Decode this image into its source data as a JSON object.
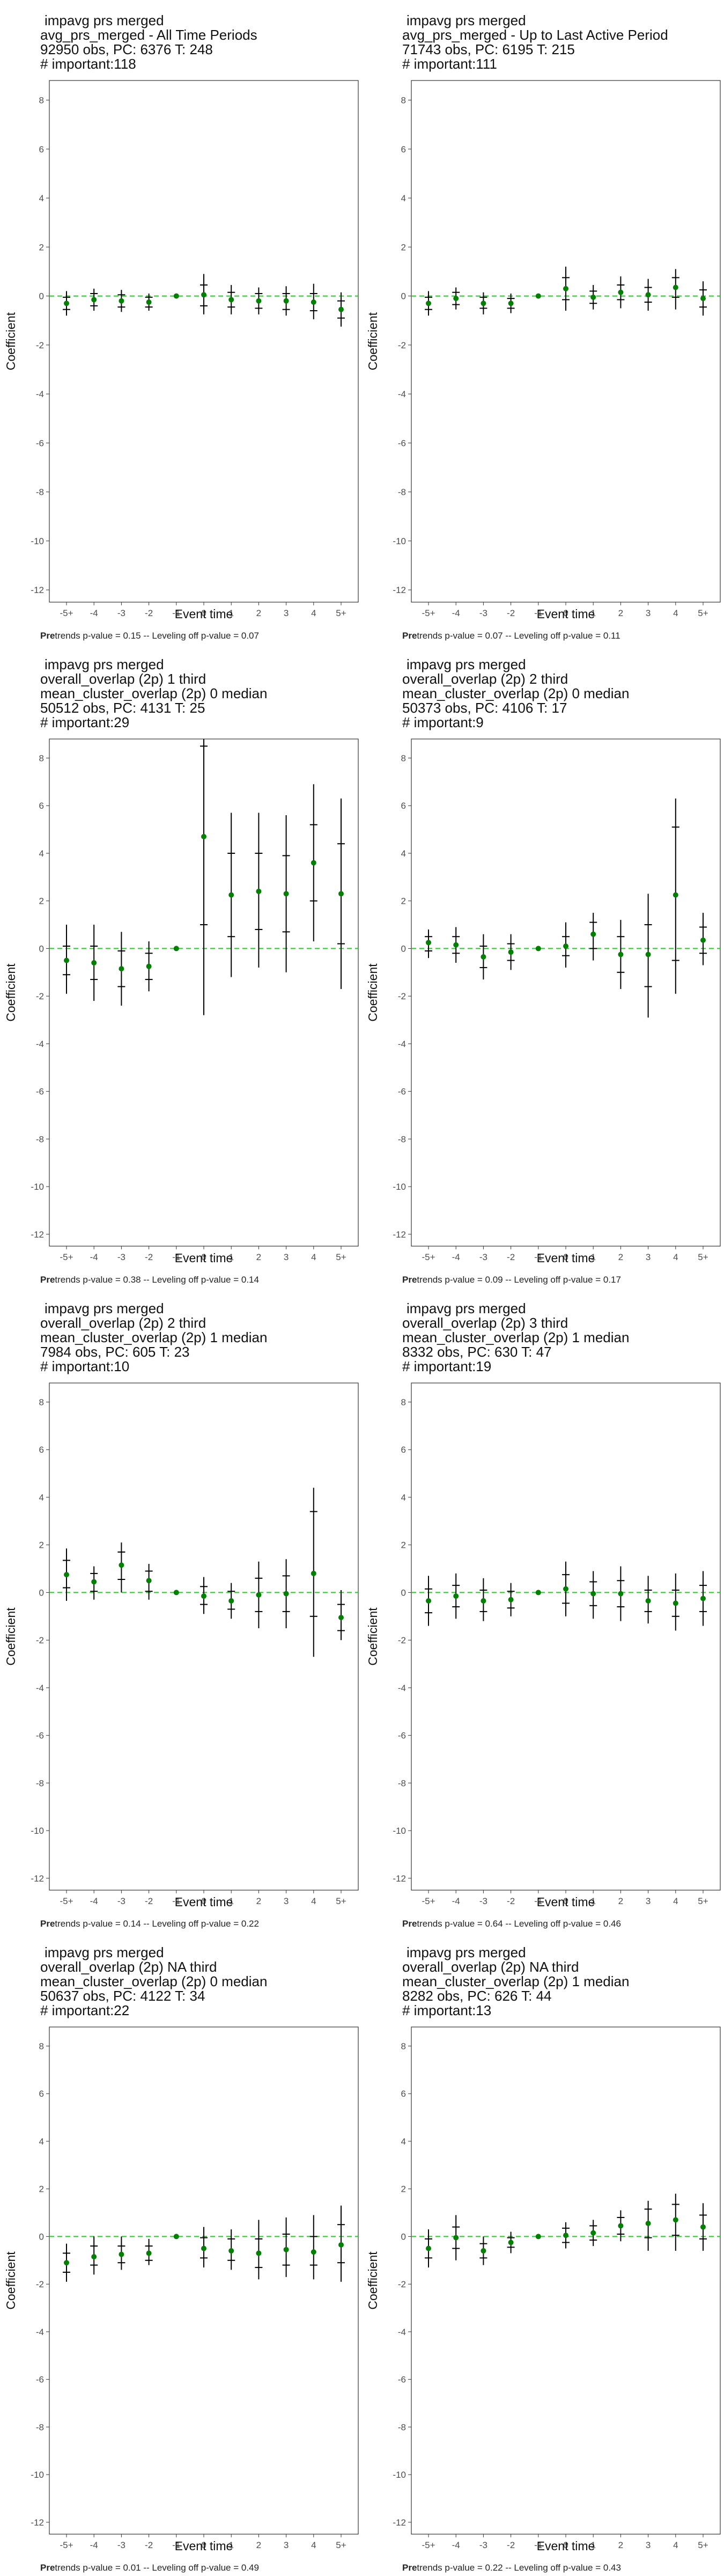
{
  "chart_data": [
    {
      "type": "scatter",
      "title_lines": [
        "impavg prs merged",
        "avg_prs_merged - All Time Periods",
        "92950 obs, PC: 6376 T: 248",
        "# important:118"
      ],
      "xlabel": "Event time",
      "ylabel": "Coefficient",
      "categories": [
        "-5+",
        "-4",
        "-3",
        "-2",
        "-1",
        "0",
        "1",
        "2",
        "3",
        "4",
        "5+"
      ],
      "ylim": [
        -12.5,
        8.8
      ],
      "yticks": [
        8,
        6,
        4,
        2,
        0,
        -2,
        -4,
        -6,
        -8,
        -10,
        -12
      ],
      "series": [
        {
          "estimate": [
            -0.3,
            -0.15,
            -0.2,
            -0.25,
            0,
            0.05,
            -0.15,
            -0.2,
            -0.2,
            -0.25,
            -0.55
          ],
          "ci_low": [
            -0.8,
            -0.6,
            -0.65,
            -0.6,
            0,
            -0.75,
            -0.75,
            -0.75,
            -0.8,
            -0.95,
            -1.25
          ],
          "ci_high": [
            0.2,
            0.3,
            0.25,
            0.1,
            0,
            0.9,
            0.45,
            0.35,
            0.4,
            0.5,
            0.15
          ],
          "bar_low": [
            -0.55,
            -0.4,
            -0.45,
            -0.45,
            0,
            -0.4,
            -0.45,
            -0.5,
            -0.55,
            -0.6,
            -0.9
          ],
          "bar_high": [
            -0.05,
            0.1,
            0.05,
            -0.05,
            0,
            0.45,
            0.15,
            0.1,
            0.1,
            0.1,
            -0.2
          ]
        }
      ],
      "reference_line_y": 0,
      "caption_bold": "Pre",
      "caption_rest": "trends p-value = 0.15 -- Leveling off p-value = 0.07"
    },
    {
      "type": "scatter",
      "title_lines": [
        "impavg prs merged",
        "avg_prs_merged - Up to Last Active Period",
        "71743 obs, PC: 6195 T: 215",
        "# important:111"
      ],
      "xlabel": "Event time",
      "ylabel": "Coefficient",
      "categories": [
        "-5+",
        "-4",
        "-3",
        "-2",
        "-1",
        "0",
        "1",
        "2",
        "3",
        "4",
        "5+"
      ],
      "ylim": [
        -12.5,
        8.8
      ],
      "yticks": [
        8,
        6,
        4,
        2,
        0,
        -2,
        -4,
        -6,
        -8,
        -10,
        -12
      ],
      "series": [
        {
          "estimate": [
            -0.3,
            -0.1,
            -0.3,
            -0.3,
            0,
            0.3,
            -0.05,
            0.15,
            0.05,
            0.35,
            -0.1
          ],
          "ci_low": [
            -0.8,
            -0.55,
            -0.75,
            -0.7,
            0,
            -0.6,
            -0.55,
            -0.5,
            -0.6,
            -0.55,
            -0.8
          ],
          "ci_high": [
            0.2,
            0.35,
            0.15,
            0.1,
            0,
            1.2,
            0.45,
            0.8,
            0.7,
            1.1,
            0.6
          ],
          "bar_low": [
            -0.55,
            -0.35,
            -0.5,
            -0.5,
            0,
            -0.15,
            -0.3,
            -0.15,
            -0.25,
            -0.05,
            -0.45
          ],
          "bar_high": [
            -0.05,
            0.15,
            -0.05,
            -0.1,
            0,
            0.75,
            0.2,
            0.45,
            0.35,
            0.75,
            0.25
          ]
        }
      ],
      "reference_line_y": 0,
      "caption_bold": "Pre",
      "caption_rest": "trends p-value = 0.07 -- Leveling off p-value = 0.11"
    },
    {
      "type": "scatter",
      "title_lines": [
        "impavg prs merged",
        "overall_overlap (2p) 1 third",
        "mean_cluster_overlap (2p) 0 median",
        "50512 obs, PC: 4131 T: 25",
        "# important:29"
      ],
      "xlabel": "Event time",
      "ylabel": "Coefficient",
      "categories": [
        "-5+",
        "-4",
        "-3",
        "-2",
        "-1",
        "0",
        "1",
        "2",
        "3",
        "4",
        "5+"
      ],
      "ylim": [
        -12.5,
        8.8
      ],
      "yticks": [
        8,
        6,
        4,
        2,
        0,
        -2,
        -4,
        -6,
        -8,
        -10,
        -12
      ],
      "series": [
        {
          "estimate": [
            -0.5,
            -0.6,
            -0.85,
            -0.75,
            0,
            4.7,
            2.25,
            2.4,
            2.3,
            3.6,
            2.3
          ],
          "ci_low": [
            -1.9,
            -2.2,
            -2.4,
            -1.8,
            0,
            -2.8,
            -1.2,
            -0.8,
            -1.0,
            0.3,
            -1.7
          ],
          "ci_high": [
            1.0,
            1.0,
            0.7,
            0.3,
            0,
            8.8,
            5.7,
            5.7,
            5.6,
            6.9,
            6.3
          ],
          "bar_low": [
            -1.1,
            -1.3,
            -1.6,
            -1.3,
            0,
            1.0,
            0.5,
            0.8,
            0.7,
            2.0,
            0.2
          ],
          "bar_high": [
            0.1,
            0.1,
            -0.1,
            -0.2,
            0,
            8.5,
            4.0,
            4.0,
            3.9,
            5.2,
            4.4
          ]
        }
      ],
      "reference_line_y": 0,
      "caption_bold": "Pre",
      "caption_rest": "trends p-value = 0.38 -- Leveling off p-value = 0.14"
    },
    {
      "type": "scatter",
      "title_lines": [
        "impavg prs merged",
        "overall_overlap (2p) 2 third",
        "mean_cluster_overlap (2p) 0 median",
        "50373 obs, PC: 4106 T: 17",
        "# important:9"
      ],
      "xlabel": "Event time",
      "ylabel": "Coefficient",
      "categories": [
        "-5+",
        "-4",
        "-3",
        "-2",
        "-1",
        "0",
        "1",
        "2",
        "3",
        "4",
        "5+"
      ],
      "ylim": [
        -12.5,
        8.8
      ],
      "yticks": [
        8,
        6,
        4,
        2,
        0,
        -2,
        -4,
        -6,
        -8,
        -10,
        -12
      ],
      "series": [
        {
          "estimate": [
            0.25,
            0.15,
            -0.35,
            -0.15,
            0,
            0.1,
            0.6,
            -0.25,
            -0.25,
            2.25,
            0.35
          ],
          "ci_low": [
            -0.4,
            -0.6,
            -1.3,
            -0.9,
            0,
            -0.8,
            -0.5,
            -1.7,
            -2.9,
            -1.9,
            -0.7
          ],
          "ci_high": [
            0.8,
            0.9,
            0.6,
            0.6,
            0,
            1.1,
            1.5,
            1.2,
            2.3,
            6.3,
            1.5
          ],
          "bar_low": [
            -0.1,
            -0.2,
            -0.8,
            -0.5,
            0,
            -0.3,
            0.0,
            -1.0,
            -1.6,
            -0.5,
            -0.2
          ],
          "bar_high": [
            0.5,
            0.5,
            0.1,
            0.2,
            0,
            0.5,
            1.1,
            0.5,
            1.0,
            5.1,
            0.9
          ]
        }
      ],
      "reference_line_y": 0,
      "caption_bold": "Pre",
      "caption_rest": "trends p-value = 0.09 -- Leveling off p-value = 0.17"
    },
    {
      "type": "scatter",
      "title_lines": [
        "impavg prs merged",
        "overall_overlap (2p) 2 third",
        "mean_cluster_overlap (2p) 1 median",
        "7984 obs, PC: 605 T: 23",
        "# important:10"
      ],
      "xlabel": "Event time",
      "ylabel": "Coefficient",
      "categories": [
        "-5+",
        "-4",
        "-3",
        "-2",
        "-1",
        "0",
        "1",
        "2",
        "3",
        "4",
        "5+"
      ],
      "ylim": [
        -12.5,
        8.8
      ],
      "yticks": [
        8,
        6,
        4,
        2,
        0,
        -2,
        -4,
        -6,
        -8,
        -10,
        -12
      ],
      "series": [
        {
          "estimate": [
            0.75,
            0.45,
            1.15,
            0.5,
            0,
            -0.15,
            -0.35,
            -0.1,
            -0.05,
            0.8,
            -1.05
          ],
          "ci_low": [
            -0.35,
            -0.3,
            0.0,
            -0.3,
            0,
            -0.9,
            -1.1,
            -1.5,
            -1.5,
            -2.7,
            -2.0
          ],
          "ci_high": [
            1.85,
            1.1,
            2.1,
            1.2,
            0,
            0.65,
            0.4,
            1.3,
            1.4,
            4.4,
            0.1
          ],
          "bar_low": [
            0.2,
            0.05,
            0.55,
            0.05,
            0,
            -0.5,
            -0.7,
            -0.8,
            -0.8,
            -1.0,
            -1.6
          ],
          "bar_high": [
            1.35,
            0.8,
            1.7,
            0.9,
            0,
            0.25,
            0.05,
            0.6,
            0.7,
            3.4,
            -0.5
          ]
        }
      ],
      "reference_line_y": 0,
      "caption_bold": "Pre",
      "caption_rest": "trends p-value = 0.14 -- Leveling off p-value = 0.22"
    },
    {
      "type": "scatter",
      "title_lines": [
        "impavg prs merged",
        "overall_overlap (2p) 3 third",
        "mean_cluster_overlap (2p) 1 median",
        "8332 obs, PC: 630 T: 47",
        "# important:19"
      ],
      "xlabel": "Event time",
      "ylabel": "Coefficient",
      "categories": [
        "-5+",
        "-4",
        "-3",
        "-2",
        "-1",
        "0",
        "1",
        "2",
        "3",
        "4",
        "5+"
      ],
      "ylim": [
        -12.5,
        8.8
      ],
      "yticks": [
        8,
        6,
        4,
        2,
        0,
        -2,
        -4,
        -6,
        -8,
        -10,
        -12
      ],
      "series": [
        {
          "estimate": [
            -0.35,
            -0.15,
            -0.35,
            -0.3,
            0,
            0.15,
            -0.05,
            -0.05,
            -0.35,
            -0.45,
            -0.25
          ],
          "ci_low": [
            -1.4,
            -1.1,
            -1.2,
            -1.0,
            0,
            -1.0,
            -1.1,
            -1.2,
            -1.3,
            -1.6,
            -1.4
          ],
          "ci_high": [
            0.7,
            0.8,
            0.6,
            0.4,
            0,
            1.3,
            0.9,
            1.1,
            0.7,
            0.8,
            0.9
          ],
          "bar_low": [
            -0.85,
            -0.6,
            -0.8,
            -0.65,
            0,
            -0.45,
            -0.55,
            -0.6,
            -0.8,
            -1.0,
            -0.8
          ],
          "bar_high": [
            0.15,
            0.3,
            0.1,
            0.05,
            0,
            0.75,
            0.45,
            0.5,
            0.1,
            0.1,
            0.3
          ]
        }
      ],
      "reference_line_y": 0,
      "caption_bold": "Pre",
      "caption_rest": "trends p-value = 0.64 -- Leveling off p-value = 0.46"
    },
    {
      "type": "scatter",
      "title_lines": [
        "impavg prs merged",
        "overall_overlap (2p) NA third",
        "mean_cluster_overlap (2p) 0 median",
        "50637 obs, PC: 4122 T: 34",
        "# important:22"
      ],
      "xlabel": "Event time",
      "ylabel": "Coefficient",
      "categories": [
        "-5+",
        "-4",
        "-3",
        "-2",
        "-1",
        "0",
        "1",
        "2",
        "3",
        "4",
        "5+"
      ],
      "ylim": [
        -12.5,
        8.8
      ],
      "yticks": [
        8,
        6,
        4,
        2,
        0,
        -2,
        -4,
        -6,
        -8,
        -10,
        -12
      ],
      "series": [
        {
          "estimate": [
            -1.1,
            -0.85,
            -0.75,
            -0.7,
            0,
            -0.5,
            -0.6,
            -0.7,
            -0.55,
            -0.65,
            -0.35
          ],
          "ci_low": [
            -1.9,
            -1.6,
            -1.4,
            -1.2,
            0,
            -1.3,
            -1.4,
            -1.8,
            -1.7,
            -1.8,
            -1.9
          ],
          "ci_high": [
            -0.3,
            0.0,
            0.0,
            -0.1,
            0,
            0.4,
            0.3,
            0.7,
            0.8,
            0.9,
            1.3
          ],
          "bar_low": [
            -1.5,
            -1.2,
            -1.1,
            -1.0,
            0,
            -0.9,
            -1.0,
            -1.3,
            -1.2,
            -1.2,
            -1.1
          ],
          "bar_high": [
            -0.7,
            -0.4,
            -0.4,
            -0.4,
            0,
            -0.05,
            -0.1,
            -0.1,
            0.1,
            0.0,
            0.5
          ]
        }
      ],
      "reference_line_y": 0,
      "caption_bold": "Pre",
      "caption_rest": "trends p-value = 0.01 -- Leveling off p-value = 0.49"
    },
    {
      "type": "scatter",
      "title_lines": [
        "impavg prs merged",
        "overall_overlap (2p) NA third",
        "mean_cluster_overlap (2p) 1 median",
        "8282 obs, PC: 626 T: 44",
        "# important:13"
      ],
      "xlabel": "Event time",
      "ylabel": "Coefficient",
      "categories": [
        "-5+",
        "-4",
        "-3",
        "-2",
        "-1",
        "0",
        "1",
        "2",
        "3",
        "4",
        "5+"
      ],
      "ylim": [
        -12.5,
        8.8
      ],
      "yticks": [
        8,
        6,
        4,
        2,
        0,
        -2,
        -4,
        -6,
        -8,
        -10,
        -12
      ],
      "series": [
        {
          "estimate": [
            -0.5,
            -0.05,
            -0.6,
            -0.25,
            0,
            0.05,
            0.15,
            0.45,
            0.55,
            0.7,
            0.4
          ],
          "ci_low": [
            -1.3,
            -1.0,
            -1.2,
            -0.7,
            0,
            -0.5,
            -0.4,
            -0.2,
            -0.6,
            -0.6,
            -0.6
          ],
          "ci_high": [
            0.3,
            0.9,
            0.0,
            0.2,
            0,
            0.6,
            0.7,
            1.1,
            1.5,
            1.8,
            1.4
          ],
          "bar_low": [
            -0.9,
            -0.5,
            -0.9,
            -0.45,
            0,
            -0.25,
            -0.15,
            0.1,
            -0.05,
            0.05,
            -0.1
          ],
          "bar_high": [
            -0.1,
            0.4,
            -0.3,
            -0.05,
            0,
            0.35,
            0.45,
            0.8,
            1.15,
            1.35,
            0.9
          ]
        }
      ],
      "reference_line_y": 0,
      "caption_bold": "Pre",
      "caption_rest": "trends p-value = 0.22 -- Leveling off p-value = 0.43"
    }
  ],
  "colors": {
    "point": "#008000",
    "reference_line": "#22cc22",
    "error_bar": "#000000",
    "frame": "#333333"
  }
}
